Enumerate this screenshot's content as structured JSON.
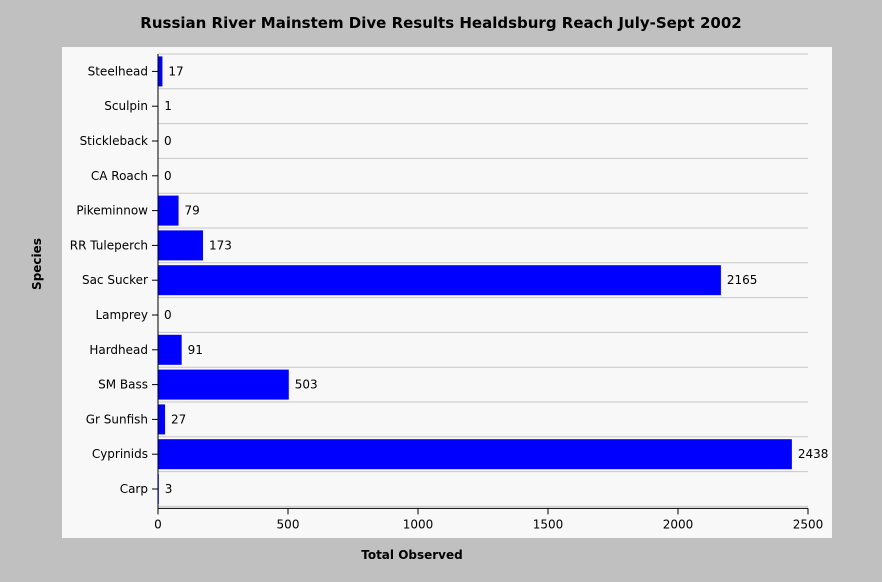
{
  "chart_data": {
    "type": "bar",
    "orientation": "horizontal",
    "title": "Russian River Mainstem Dive Results Healdsburg Reach July-Sept 2002",
    "xlabel": "Total Observed",
    "ylabel": "Species",
    "categories": [
      "Steelhead",
      "Sculpin",
      "Stickleback",
      "CA Roach",
      "Pikeminnow",
      "RR Tuleperch",
      "Sac Sucker",
      "Lamprey",
      "Hardhead",
      "SM Bass",
      "Gr Sunfish",
      "Cyprinids",
      "Carp"
    ],
    "values": [
      17,
      1,
      0,
      0,
      79,
      173,
      2165,
      0,
      91,
      503,
      27,
      2438,
      3
    ],
    "xlim": [
      0,
      2500
    ],
    "xticks": [
      0,
      500,
      1000,
      1500,
      2000,
      2500
    ],
    "grid": true,
    "legend": "none",
    "bar_color": "#0000ff",
    "background_color": "#c0c0c0",
    "plot_color": "#f8f8f8"
  }
}
